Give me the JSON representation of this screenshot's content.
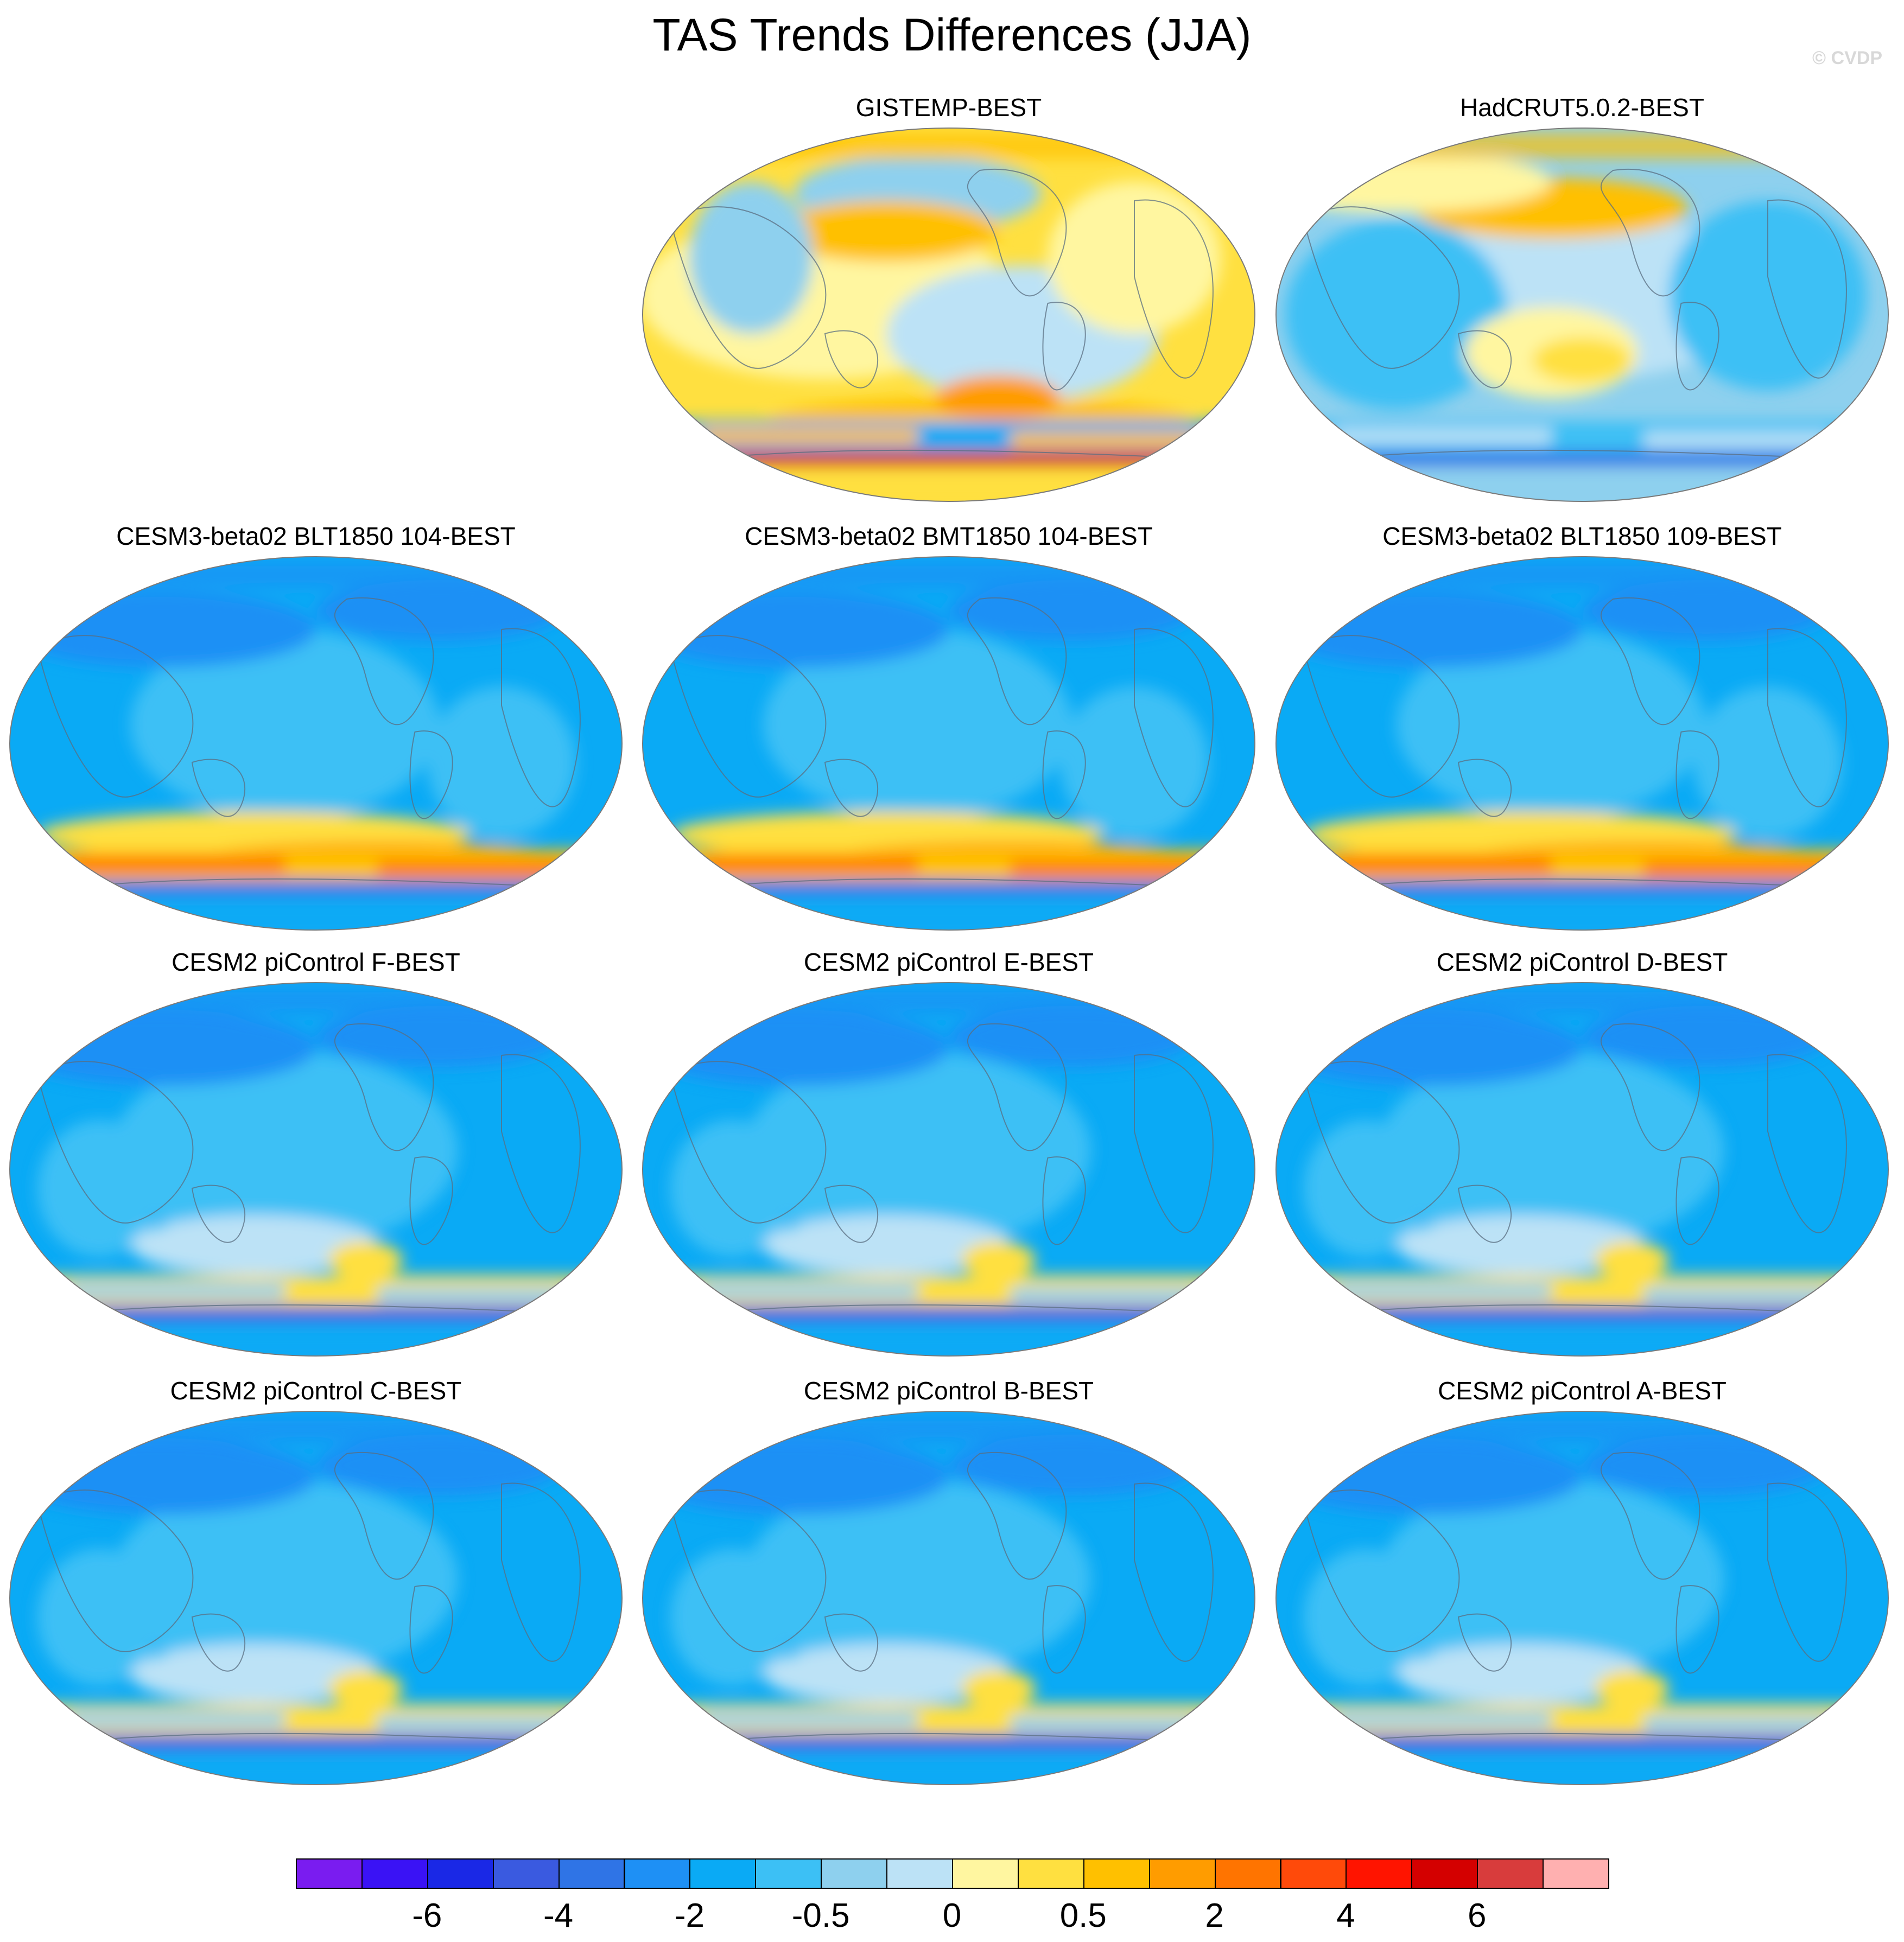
{
  "title": "TAS Trends Differences (JJA)",
  "watermark": "© CVDP",
  "panels": [
    {
      "label": "GISTEMP-BEST",
      "style": "warm"
    },
    {
      "label": "HadCRUT5.0.2-BEST",
      "style": "mixed"
    },
    {
      "label": "CESM3-beta02 BLT1850 104-BEST",
      "style": "cold-warm-south"
    },
    {
      "label": "CESM3-beta02 BMT1850 104-BEST",
      "style": "cold-warm-south"
    },
    {
      "label": "CESM3-beta02 BLT1850 109-BEST",
      "style": "cold-warm-south"
    },
    {
      "label": "CESM2 piControl F-BEST",
      "style": "cold"
    },
    {
      "label": "CESM2 piControl E-BEST",
      "style": "cold"
    },
    {
      "label": "CESM2 piControl D-BEST",
      "style": "cold"
    },
    {
      "label": "CESM2 piControl C-BEST",
      "style": "cold"
    },
    {
      "label": "CESM2 piControl B-BEST",
      "style": "cold"
    },
    {
      "label": "CESM2 piControl A-BEST",
      "style": "cold"
    }
  ],
  "colorbar": {
    "colors": [
      "#7a1cf0",
      "#3a12f5",
      "#1a28e6",
      "#3a5ae0",
      "#2f74e6",
      "#1e90f5",
      "#0aaaf5",
      "#3cc0f5",
      "#8ed0ee",
      "#bce2f6",
      "#fff6a0",
      "#ffe040",
      "#ffc000",
      "#ff9c00",
      "#ff7400",
      "#ff4a0a",
      "#ff1400",
      "#d40000",
      "#d83c3c",
      "#ffb0b0"
    ],
    "labels": [
      "-6",
      "-4",
      "-2",
      "-0.5",
      "0",
      "0.5",
      "2",
      "4",
      "6"
    ]
  }
}
